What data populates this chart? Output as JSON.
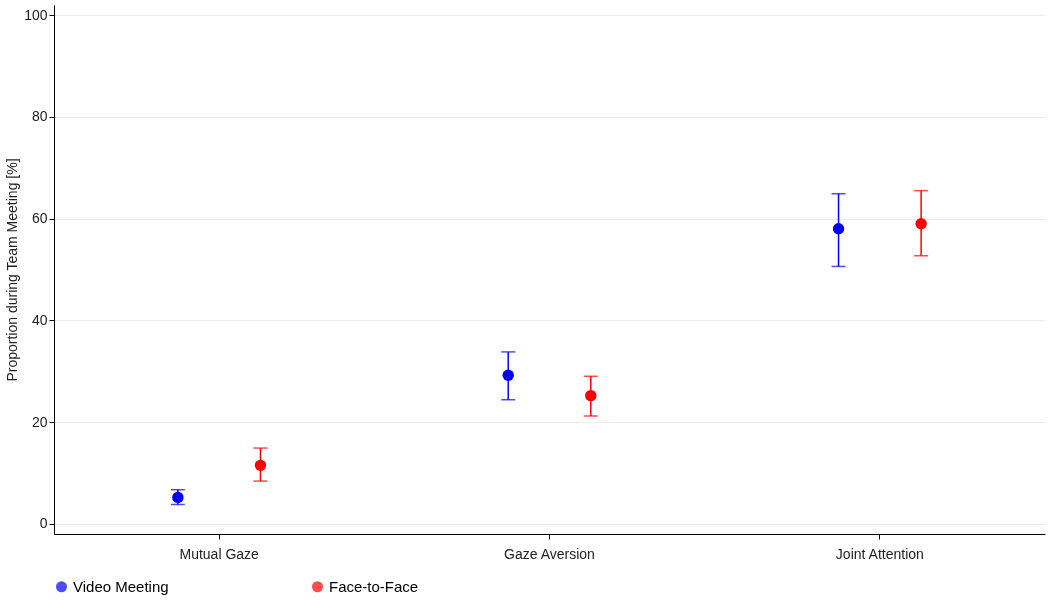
{
  "chart_data": {
    "type": "scatter",
    "ylabel": "Proportion during Team Meeting [%]",
    "categories": [
      "Mutual Gaze",
      "Gaze Aversion",
      "Joint Attention"
    ],
    "series": [
      {
        "name": "Video Meeting",
        "color": "#0000ff",
        "values": [
          5.2,
          29.2,
          58.0
        ],
        "errors": [
          [
            3.8,
            6.7
          ],
          [
            24.4,
            33.8
          ],
          [
            50.6,
            64.9
          ]
        ]
      },
      {
        "name": "Face-to-Face",
        "color": "#ff0000",
        "values": [
          11.5,
          25.2,
          59.0
        ],
        "errors": [
          [
            8.4,
            14.9
          ],
          [
            21.2,
            29.0
          ],
          [
            52.7,
            65.5
          ]
        ]
      }
    ],
    "ylim": [
      -2,
      102
    ],
    "yticks": [
      0,
      20,
      40,
      60,
      80,
      100
    ],
    "grid": "y",
    "legend": "bottom",
    "marker": "circle"
  }
}
